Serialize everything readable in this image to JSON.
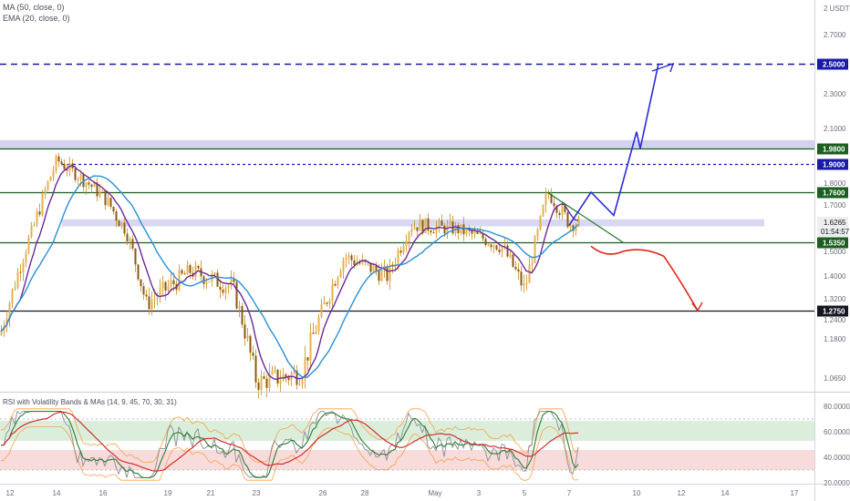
{
  "legend": {
    "ma": "MA (50, close, 0)",
    "ema": "EMA (20, close, 0)",
    "rsi": "RSI with Volatility Bands & MAs (14, 9, 45, 70, 30, 31)"
  },
  "price_axis": {
    "currency_label": "2 USDT",
    "ticks": [
      "2.7000",
      "2.3000",
      "2.1000",
      "1.8000",
      "1.7000",
      "1.5000",
      "1.4000",
      "1.3200",
      "1.2400",
      "1.1800",
      "1.0650"
    ],
    "current_price": "1.6265",
    "countdown": "01:54:57"
  },
  "rsi_axis": {
    "ticks": [
      "80.0000",
      "60.0000",
      "40.0000",
      "20.0000"
    ]
  },
  "time_axis": {
    "ticks": [
      "12",
      "14",
      "16",
      "19",
      "21",
      "23",
      "26",
      "28",
      "May",
      "3",
      "5",
      "7",
      "10",
      "12",
      "14",
      "17"
    ]
  },
  "colors": {
    "blue_level": "#1a1aa8",
    "green_level": "#1b5e20",
    "black_level": "#131722",
    "zone_fill": "#c8c8ec",
    "ma_line": "#2b8fd6",
    "ema_line": "#6a2a9a",
    "bull_path": "#2a2ad8",
    "bear_path": "#e0261a",
    "wedge_line": "#1d7a2a",
    "candle": "#c88a1e"
  },
  "chart_data": {
    "type": "line",
    "pair_quote": "USDT",
    "levels": [
      {
        "label": "2.5000",
        "value": 2.5,
        "style": "dashed",
        "color": "blue"
      },
      {
        "label": "1.9800",
        "value": 1.98,
        "style": "solid",
        "color": "green"
      },
      {
        "label": "1.9000",
        "value": 1.9,
        "style": "dashed",
        "color": "blue"
      },
      {
        "label": "1.7600",
        "value": 1.76,
        "style": "solid",
        "color": "green"
      },
      {
        "label": "1.5350",
        "value": 1.535,
        "style": "solid",
        "color": "green"
      },
      {
        "label": "1.2750",
        "value": 1.275,
        "style": "solid",
        "color": "black"
      }
    ],
    "zones": [
      {
        "from": 1.98,
        "to": 2.03
      },
      {
        "from": 1.615,
        "to": 1.645
      }
    ],
    "price_key_points": [
      {
        "date": "Apr 12",
        "price": 1.32
      },
      {
        "date": "Apr 13",
        "price": 1.62
      },
      {
        "date": "Apr 14",
        "price": 1.92
      },
      {
        "date": "Apr 16",
        "price": 1.74
      },
      {
        "date": "Apr 17",
        "price": 1.6
      },
      {
        "date": "Apr 18",
        "price": 1.3
      },
      {
        "date": "Apr 20",
        "price": 1.42
      },
      {
        "date": "Apr 22",
        "price": 1.36
      },
      {
        "date": "Apr 23",
        "price": 1.05
      },
      {
        "date": "Apr 25",
        "price": 1.08
      },
      {
        "date": "Apr 27",
        "price": 1.48
      },
      {
        "date": "Apr 29",
        "price": 1.4
      },
      {
        "date": "Apr 30",
        "price": 1.62
      },
      {
        "date": "May 2",
        "price": 1.6
      },
      {
        "date": "May 4",
        "price": 1.52
      },
      {
        "date": "May 5",
        "price": 1.35
      },
      {
        "date": "May 6",
        "price": 1.76
      },
      {
        "date": "May 7",
        "price": 1.6265
      }
    ],
    "bullish_projection": [
      {
        "date": "May 7",
        "price": 1.62
      },
      {
        "date": "May 8",
        "price": 1.76
      },
      {
        "date": "May 9",
        "price": 1.66
      },
      {
        "date": "May 10",
        "price": 2.08
      },
      {
        "date": "May 10",
        "price": 1.98
      },
      {
        "date": "May 11",
        "price": 2.5
      }
    ],
    "bearish_projection": [
      {
        "date": "May 8",
        "price": 1.52
      },
      {
        "date": "May 9",
        "price": 1.47
      },
      {
        "date": "May 10",
        "price": 1.52
      },
      {
        "date": "May 11",
        "price": 1.46
      },
      {
        "date": "May 12",
        "price": 1.275
      }
    ],
    "rsi_bands": {
      "upper": 60,
      "lower": 40
    }
  }
}
